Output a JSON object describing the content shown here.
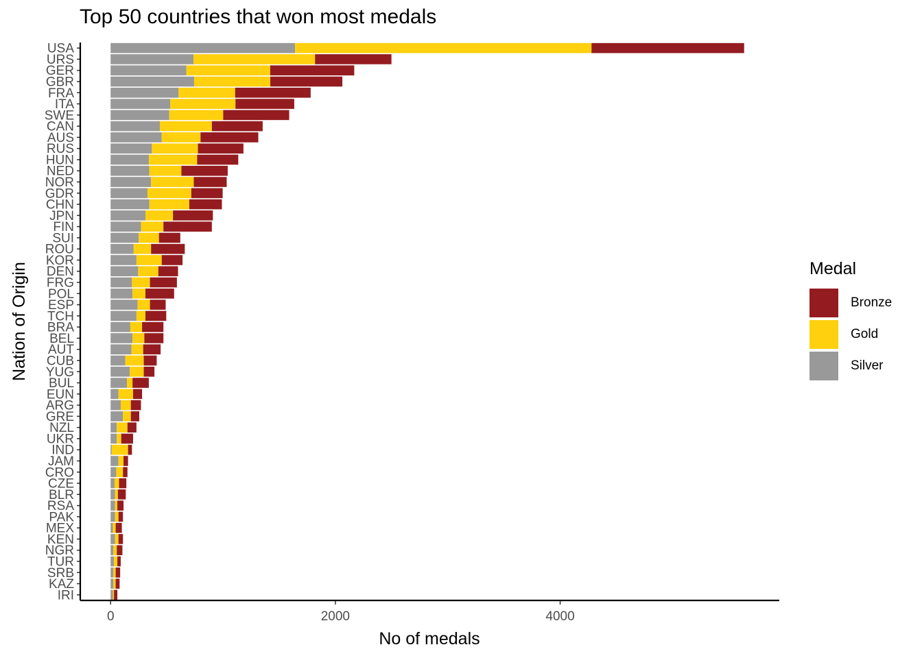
{
  "chart_data": {
    "type": "bar",
    "orientation": "horizontal",
    "stacked": true,
    "title": "Top 50 countries that won most medals",
    "xlabel": "No of medals",
    "ylabel": "Nation of Origin",
    "xlim": [
      -270,
      5950
    ],
    "xticks": [
      0,
      2000,
      4000
    ],
    "xtick_labels": [
      "0",
      "2000",
      "4000"
    ],
    "grid": false,
    "legend": {
      "title": "Medal",
      "position": "right"
    },
    "categories": [
      "USA",
      "URS",
      "GER",
      "GBR",
      "FRA",
      "ITA",
      "SWE",
      "CAN",
      "AUS",
      "RUS",
      "HUN",
      "NED",
      "NOR",
      "GDR",
      "CHN",
      "JPN",
      "FIN",
      "SUI",
      "ROU",
      "KOR",
      "DEN",
      "FRG",
      "POL",
      "ESP",
      "TCH",
      "BRA",
      "BEL",
      "AUT",
      "CUB",
      "YUG",
      "BUL",
      "EUN",
      "ARG",
      "GRE",
      "NZL",
      "UKR",
      "IND",
      "JAM",
      "CRO",
      "CZE",
      "BLR",
      "RSA",
      "PAK",
      "MEX",
      "KEN",
      "NGR",
      "TUR",
      "SRB",
      "KAZ",
      "IRI"
    ],
    "series": [
      {
        "name": "Silver",
        "color": "#999999",
        "values": [
          1641,
          737,
          674,
          743,
          605,
          531,
          522,
          438,
          455,
          367,
          340,
          345,
          360,
          328,
          345,
          310,
          270,
          250,
          205,
          230,
          245,
          190,
          195,
          240,
          230,
          175,
          195,
          185,
          130,
          170,
          145,
          70,
          90,
          110,
          55,
          55,
          10,
          70,
          50,
          35,
          40,
          40,
          40,
          20,
          40,
          25,
          30,
          25,
          25,
          20
        ]
      },
      {
        "name": "Gold",
        "color": "#FFD00D",
        "values": [
          2638,
          1082,
          746,
          678,
          503,
          580,
          480,
          463,
          345,
          410,
          430,
          285,
          380,
          390,
          355,
          245,
          200,
          180,
          155,
          225,
          180,
          160,
          115,
          110,
          80,
          105,
          105,
          105,
          165,
          125,
          50,
          130,
          90,
          70,
          95,
          40,
          145,
          45,
          60,
          40,
          25,
          20,
          30,
          25,
          30,
          30,
          30,
          20,
          20,
          10
        ]
      },
      {
        "name": "Bronze",
        "color": "#941C20",
        "values": [
          1358,
          680,
          748,
          641,
          672,
          523,
          587,
          452,
          514,
          405,
          366,
          412,
          293,
          279,
          290,
          355,
          431,
          190,
          300,
          185,
          175,
          240,
          255,
          140,
          185,
          190,
          170,
          155,
          115,
          95,
          145,
          80,
          90,
          75,
          80,
          105,
          35,
          40,
          40,
          65,
          70,
          55,
          40,
          55,
          40,
          50,
          30,
          40,
          35,
          30
        ]
      }
    ]
  }
}
